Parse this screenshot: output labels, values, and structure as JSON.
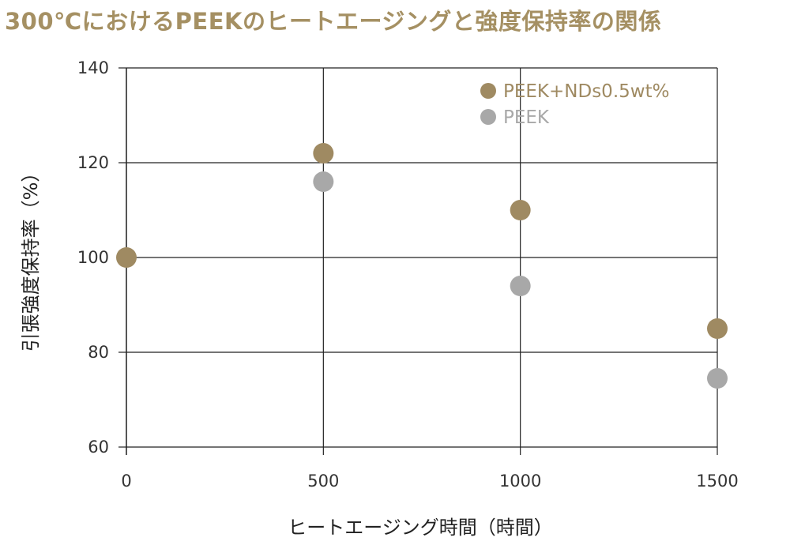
{
  "page": {
    "title": "300℃におけるPEEKのヒートエージングと強度保持率の関係"
  },
  "chart_data": {
    "type": "scatter",
    "title": "300℃におけるPEEKのヒートエージングと強度保持率の関係",
    "xlabel": "ヒートエージング時間（時間）",
    "ylabel": "引張強度保持率（%）",
    "xlim": [
      0,
      1500
    ],
    "ylim": [
      60,
      140
    ],
    "xticks": [
      0,
      500,
      1000,
      1500
    ],
    "yticks": [
      60,
      80,
      100,
      120,
      140
    ],
    "grid": true,
    "legend_position": "top-right",
    "series": [
      {
        "name": "PEEK+NDs0.5wt%",
        "color": "#9f8a62",
        "x": [
          0,
          500,
          1000,
          1500
        ],
        "y": [
          100,
          122,
          110,
          85
        ]
      },
      {
        "name": "PEEK",
        "color": "#a8a8a8",
        "x": [
          500,
          1000,
          1500
        ],
        "y": [
          116,
          94,
          74.5
        ]
      }
    ]
  }
}
